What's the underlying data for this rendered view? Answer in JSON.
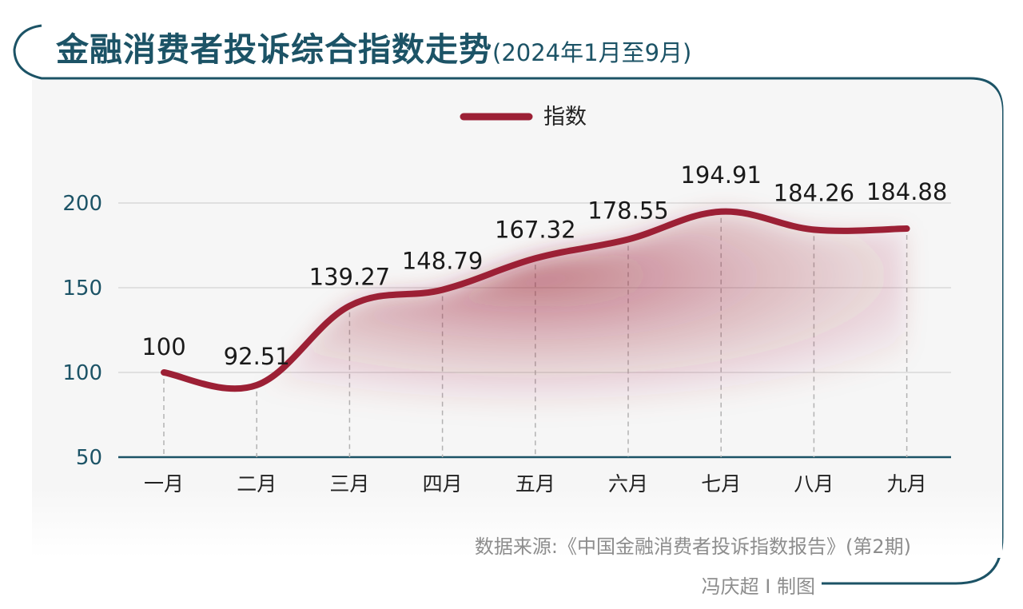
{
  "header": {
    "title": "金融消费者投诉综合指数走势",
    "subtitle": "(2024年1月至9月)"
  },
  "footer": {
    "source": "数据来源:《中国金融消费者投诉指数报告》(第2期)",
    "credit": "冯庆超 I 制图"
  },
  "colors": {
    "frame": "#1c5366",
    "axis_text": "#1c5366",
    "line": "#9c2035",
    "panel_background": "#f6f6f6",
    "gridline": "#d9d9d9"
  },
  "chart_data": {
    "type": "line",
    "categories": [
      "一月",
      "二月",
      "三月",
      "四月",
      "五月",
      "六月",
      "七月",
      "八月",
      "九月"
    ],
    "series": [
      {
        "name": "指数",
        "values": [
          100,
          92.51,
          139.27,
          148.79,
          167.32,
          178.55,
          194.91,
          184.26,
          184.88
        ],
        "labels": [
          "100",
          "92.51",
          "139.27",
          "148.79",
          "167.32",
          "178.55",
          "194.91",
          "184.26",
          "184.88"
        ]
      }
    ],
    "ylim": [
      50,
      200
    ],
    "yticks": [
      50,
      100,
      150,
      200
    ],
    "grid": true,
    "legend_position": "top-center",
    "area_fill": "gradient"
  }
}
